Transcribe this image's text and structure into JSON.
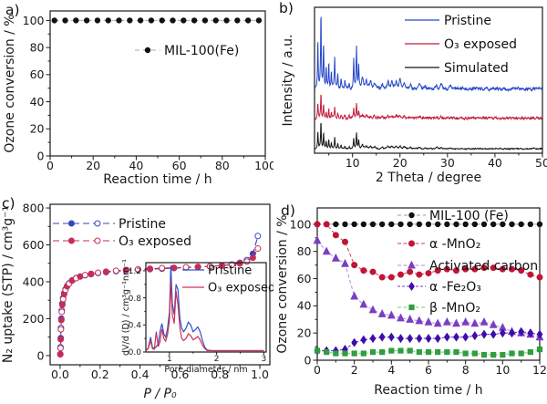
{
  "figure": {
    "background": "#ffffff",
    "panels": [
      {
        "label": "a)"
      },
      {
        "label": "b)"
      },
      {
        "label": "c)"
      },
      {
        "label": "d)"
      }
    ]
  },
  "chart_data": [
    {
      "id": "a",
      "type": "line",
      "title": "",
      "xlabel": "Reaction time / h",
      "ylabel": "Ozone conversion / %",
      "xlim": [
        0,
        100
      ],
      "ylim": [
        0,
        107
      ],
      "xticks": {
        "major": [
          0,
          20,
          40,
          60,
          80,
          100
        ],
        "minor": [
          10,
          30,
          50,
          70,
          90
        ]
      },
      "yticks": {
        "major": [
          0,
          20,
          40,
          60,
          80,
          100
        ],
        "minor": [
          10,
          30,
          50,
          70,
          90
        ]
      },
      "series": [
        {
          "name": "MIL-100(Fe)",
          "x": [
            2,
            7,
            12,
            17,
            22,
            27,
            32,
            37,
            42,
            47,
            52,
            57,
            62,
            67,
            72,
            77,
            82,
            87,
            92,
            97
          ],
          "y": [
            100,
            100,
            100,
            100,
            100,
            100,
            100,
            100,
            100,
            100,
            100,
            100,
            100,
            100,
            100,
            100,
            100,
            100,
            100,
            100
          ],
          "lineColor": "#ababab",
          "lineDash": "5,4",
          "lineWidth": 1,
          "marker": {
            "shape": "circle",
            "size": 2.7,
            "color": "#111111"
          }
        }
      ],
      "legend": [
        {
          "label": "MIL-100(Fe)",
          "series": 0
        }
      ]
    },
    {
      "id": "b",
      "type": "xrd",
      "title": "",
      "xlabel": "2 Theta / degree",
      "ylabel": "Intensity / a.u.",
      "xlim": [
        2,
        50
      ],
      "ylim": [
        0,
        1
      ],
      "xticks": {
        "major": [
          10,
          20,
          30,
          40,
          50
        ],
        "minor": [
          5,
          15,
          25,
          35,
          45
        ]
      },
      "peaks": [
        [
          2.7,
          0.6
        ],
        [
          3.35,
          1.0
        ],
        [
          3.9,
          0.55
        ],
        [
          4.45,
          0.28
        ],
        [
          5.0,
          0.33
        ],
        [
          5.55,
          0.2
        ],
        [
          6.25,
          0.42
        ],
        [
          6.9,
          0.18
        ],
        [
          7.6,
          0.12
        ],
        [
          8.4,
          0.1
        ],
        [
          9.3,
          0.08
        ],
        [
          10.25,
          0.38
        ],
        [
          10.85,
          0.55
        ],
        [
          11.3,
          0.3
        ],
        [
          12.1,
          0.13
        ],
        [
          12.9,
          0.1
        ],
        [
          13.8,
          0.09
        ],
        [
          14.7,
          0.07
        ],
        [
          16.3,
          0.06
        ],
        [
          17.5,
          0.09
        ],
        [
          18.3,
          0.1
        ],
        [
          19.2,
          0.09
        ],
        [
          20.0,
          0.11
        ],
        [
          20.9,
          0.07
        ],
        [
          22.2,
          0.05
        ],
        [
          24.1,
          0.06
        ],
        [
          25.3,
          0.04
        ],
        [
          27.7,
          0.06
        ],
        [
          28.7,
          0.05
        ],
        [
          30.6,
          0.03
        ],
        [
          33.2,
          0.02
        ],
        [
          36.1,
          0.015
        ],
        [
          40.2,
          0.012
        ],
        [
          44.9,
          0.01
        ],
        [
          48.2,
          0.01
        ]
      ],
      "series": [
        {
          "name": "Pristine",
          "color": "#2547c8",
          "baseline": 0.44,
          "scale": 0.53,
          "noise": 0.012,
          "seed": 7
        },
        {
          "name": "O₃ exposed",
          "color": "#c01c3c",
          "baseline": 0.24,
          "scale": 0.17,
          "noise": 0.01,
          "seed": 13
        },
        {
          "name": "Simulated",
          "color": "#151515",
          "baseline": 0.03,
          "scale": 0.19,
          "noise": 0.005,
          "seed": 29
        }
      ],
      "legend": [
        {
          "label": "Pristine",
          "series": 0
        },
        {
          "label": "O₃ exposed",
          "series": 1
        },
        {
          "label": "Simulated",
          "series": 2
        }
      ]
    },
    {
      "id": "c",
      "type": "line",
      "title": "",
      "xlabel": "P / P₀",
      "xlabel_italic": true,
      "ylabel": "N₂ uptake (STP) / cm³g⁻¹",
      "xlim": [
        -0.05,
        1.05
      ],
      "ylim": [
        -50,
        820
      ],
      "xticks": {
        "major": [
          0,
          0.2,
          0.4,
          0.6,
          0.8,
          1.0
        ],
        "labels": [
          "0.0",
          "0.2",
          "0.4",
          "0.6",
          "0.8",
          "1.0"
        ],
        "minor": [
          0.1,
          0.3,
          0.5,
          0.7,
          0.9
        ]
      },
      "yticks": {
        "major": [
          0,
          200,
          400,
          600,
          800
        ],
        "minor": [
          100,
          300,
          500,
          700
        ]
      },
      "series": [
        {
          "name": "Pristine",
          "x": [
            0.001,
            0.002,
            0.003,
            0.004,
            0.006,
            0.008,
            0.011,
            0.015,
            0.02,
            0.027,
            0.035,
            0.045,
            0.06,
            0.08,
            0.1,
            0.125,
            0.155,
            0.19,
            0.23,
            0.28,
            0.33,
            0.39,
            0.45,
            0.51,
            0.57,
            0.63,
            0.69,
            0.75,
            0.81,
            0.86,
            0.9,
            0.935,
            0.965,
            0.99
          ],
          "y": [
            8,
            45,
            95,
            150,
            200,
            245,
            282,
            312,
            338,
            360,
            378,
            392,
            408,
            420,
            428,
            435,
            441,
            447,
            452,
            457,
            461,
            465,
            468,
            471,
            474,
            477,
            480,
            484,
            488,
            494,
            503,
            518,
            552,
            648
          ],
          "lineColor": "#3946c0",
          "lineDash": "7,4",
          "lineWidth": 1.1,
          "marker": {
            "shape": "circle",
            "size": 3,
            "color": "#3946c0"
          },
          "markerAlt": true
        },
        {
          "name": "O₃ exposed",
          "x": [
            0.001,
            0.002,
            0.003,
            0.004,
            0.006,
            0.008,
            0.011,
            0.015,
            0.02,
            0.027,
            0.035,
            0.045,
            0.06,
            0.08,
            0.1,
            0.125,
            0.155,
            0.19,
            0.23,
            0.28,
            0.33,
            0.39,
            0.45,
            0.51,
            0.57,
            0.63,
            0.69,
            0.75,
            0.81,
            0.86,
            0.9,
            0.935,
            0.965,
            0.99
          ],
          "y": [
            6,
            40,
            88,
            142,
            192,
            237,
            275,
            306,
            333,
            356,
            375,
            390,
            406,
            419,
            428,
            436,
            443,
            449,
            455,
            460,
            464,
            468,
            471,
            474,
            476,
            479,
            481,
            484,
            487,
            492,
            499,
            510,
            530,
            580
          ],
          "lineColor": "#c62d55",
          "lineDash": "7,4",
          "lineWidth": 1.1,
          "marker": {
            "shape": "circle",
            "size": 3,
            "color": "#c62d55"
          },
          "markerAlt": true
        }
      ],
      "legend": [
        {
          "label": "Pristine",
          "series": 0
        },
        {
          "label": "O₃ exposed",
          "series": 1
        }
      ]
    },
    {
      "id": "c_inset",
      "type": "line",
      "title": "",
      "xlabel": "Pore diameter / nm",
      "ylabel": "dV/d (D) / cm³g⁻¹nm⁻¹",
      "xlim": [
        0.5,
        3.05
      ],
      "ylim": [
        0,
        1.32
      ],
      "xticks": {
        "major": [
          1,
          2,
          3
        ],
        "minor": [
          1.5,
          2.5
        ]
      },
      "yticks": {
        "major": [
          0,
          0.4,
          0.8,
          1.2
        ],
        "labels": [
          "0.0",
          "0.4",
          "0.8",
          "1.2"
        ],
        "minor": [
          0.2,
          0.6,
          1.0
        ]
      },
      "series": [
        {
          "name": "Pristine",
          "x": [
            0.5,
            0.55,
            0.6,
            0.64,
            0.68,
            0.72,
            0.76,
            0.8,
            0.84,
            0.88,
            0.92,
            0.96,
            1.0,
            1.03,
            1.06,
            1.1,
            1.14,
            1.18,
            1.22,
            1.26,
            1.3,
            1.35,
            1.4,
            1.45,
            1.5,
            1.55,
            1.6,
            1.65,
            1.7,
            1.75,
            1.8,
            1.9,
            2.0,
            2.2,
            2.6,
            3.0
          ],
          "y": [
            0.02,
            0.06,
            0.22,
            0.07,
            0.05,
            0.08,
            0.12,
            0.3,
            0.42,
            0.27,
            0.22,
            0.35,
            0.6,
            1.28,
            0.72,
            0.55,
            1.0,
            0.92,
            0.5,
            0.35,
            0.3,
            0.35,
            0.44,
            0.4,
            0.3,
            0.33,
            0.37,
            0.3,
            0.17,
            0.07,
            0.03,
            0.02,
            0.02,
            0.02,
            0.02,
            0.02
          ],
          "lineColor": "#3050cc",
          "lineWidth": 1.2
        },
        {
          "name": "O₃ exposed",
          "x": [
            0.5,
            0.55,
            0.6,
            0.64,
            0.68,
            0.72,
            0.76,
            0.8,
            0.84,
            0.88,
            0.92,
            0.96,
            1.0,
            1.03,
            1.06,
            1.1,
            1.14,
            1.18,
            1.22,
            1.26,
            1.3,
            1.35,
            1.4,
            1.45,
            1.5,
            1.55,
            1.6,
            1.65,
            1.7,
            1.75,
            1.8,
            1.9,
            2.0,
            2.2,
            2.6,
            3.0
          ],
          "y": [
            0.02,
            0.05,
            0.17,
            0.05,
            0.04,
            0.3,
            0.08,
            0.15,
            0.34,
            0.2,
            0.16,
            0.26,
            0.48,
            1.06,
            0.55,
            0.42,
            0.9,
            0.7,
            0.36,
            0.2,
            0.17,
            0.2,
            0.27,
            0.24,
            0.18,
            0.2,
            0.23,
            0.18,
            0.1,
            0.05,
            0.02,
            0.02,
            0.02,
            0.02,
            0.02,
            0.02
          ],
          "lineColor": "#cc3355",
          "lineWidth": 1.2
        }
      ],
      "legend": [
        {
          "label": "Pristine",
          "series": 0
        },
        {
          "label": "O₃ exposed",
          "series": 1
        }
      ]
    },
    {
      "id": "d",
      "type": "line",
      "title": "",
      "xlabel": "Reaction time / h",
      "ylabel": "Ozone conversion / %",
      "xlim": [
        0,
        12
      ],
      "ylim": [
        0,
        112
      ],
      "x": [
        0,
        0.5,
        1,
        1.5,
        2,
        2.5,
        3,
        3.5,
        4,
        4.5,
        5,
        5.5,
        6,
        6.5,
        7,
        7.5,
        8,
        8.5,
        9,
        9.5,
        10,
        10.5,
        11,
        11.5,
        12
      ],
      "xticks": {
        "major": [
          0,
          2,
          4,
          6,
          8,
          10,
          12
        ],
        "minor": [
          1,
          3,
          5,
          7,
          9,
          11
        ]
      },
      "yticks": {
        "major": [
          0,
          20,
          40,
          60,
          80,
          100
        ],
        "minor": [
          10,
          30,
          50,
          70,
          90
        ]
      },
      "series": [
        {
          "name": "MIL-100 (Fe)",
          "y": [
            100,
            100,
            100,
            100,
            100,
            100,
            100,
            100,
            100,
            100,
            100,
            100,
            100,
            100,
            100,
            100,
            100,
            100,
            100,
            100,
            100,
            100,
            100,
            100,
            100
          ],
          "lineColor": "#9a9a9a",
          "lineDash": "4,3",
          "lineWidth": 1,
          "marker": {
            "shape": "circle",
            "size": 2.7,
            "color": "#111111"
          }
        },
        {
          "name": "α -MnO₂",
          "y": [
            100,
            100,
            92,
            87,
            70,
            66,
            65,
            61,
            61,
            63,
            65,
            63,
            64,
            66,
            67,
            66,
            67,
            67,
            68,
            68,
            67,
            67,
            66,
            63,
            61
          ],
          "lineColor": "#c8405e",
          "lineDash": "4,2.5",
          "lineWidth": 1,
          "marker": {
            "shape": "circle",
            "size": 3,
            "color": "#c01535"
          }
        },
        {
          "name": "Activated carbon",
          "y": [
            88,
            80,
            75,
            71,
            47,
            41,
            37,
            34,
            33,
            31,
            30,
            29,
            28,
            27,
            28,
            27,
            28,
            27,
            28,
            26,
            24,
            21,
            20,
            19,
            17
          ],
          "lineColor": "#bfa0e6",
          "lineDash": "4,2.5",
          "lineWidth": 1.2,
          "marker": {
            "shape": "triangle",
            "size": 3.6,
            "color": "#7a3fc0"
          }
        },
        {
          "name": "α -Fe₂O₃",
          "y": [
            7,
            7,
            7,
            8,
            13,
            15,
            16,
            17,
            17,
            16,
            16,
            16,
            16,
            16,
            17,
            17,
            17,
            18,
            19,
            19,
            20,
            20,
            21,
            20,
            19
          ],
          "lineColor": "#7d35c0",
          "lineDash": "3,2",
          "lineWidth": 1.1,
          "marker": {
            "shape": "diamond",
            "size": 3.3,
            "color": "#3c0fab"
          }
        },
        {
          "name": "β -MnO₂",
          "y": [
            7,
            6,
            5,
            5,
            5,
            5,
            6,
            6,
            7,
            7,
            7,
            6,
            6,
            6,
            6,
            6,
            5,
            5,
            4,
            4,
            4,
            5,
            5,
            6,
            8
          ],
          "lineColor": "#92d492",
          "lineDash": "4,2.5",
          "lineWidth": 1.2,
          "marker": {
            "shape": "square",
            "size": 2.6,
            "color": "#2e9e3e"
          }
        }
      ],
      "legend": [
        {
          "label": "MIL-100 (Fe)",
          "series": 0
        },
        {
          "label": "α -MnO₂",
          "series": 1
        },
        {
          "label": "Activated carbon",
          "series": 2
        },
        {
          "label": "α -Fe₂O₃",
          "series": 3
        },
        {
          "label": "β -MnO₂",
          "series": 4
        }
      ]
    }
  ]
}
